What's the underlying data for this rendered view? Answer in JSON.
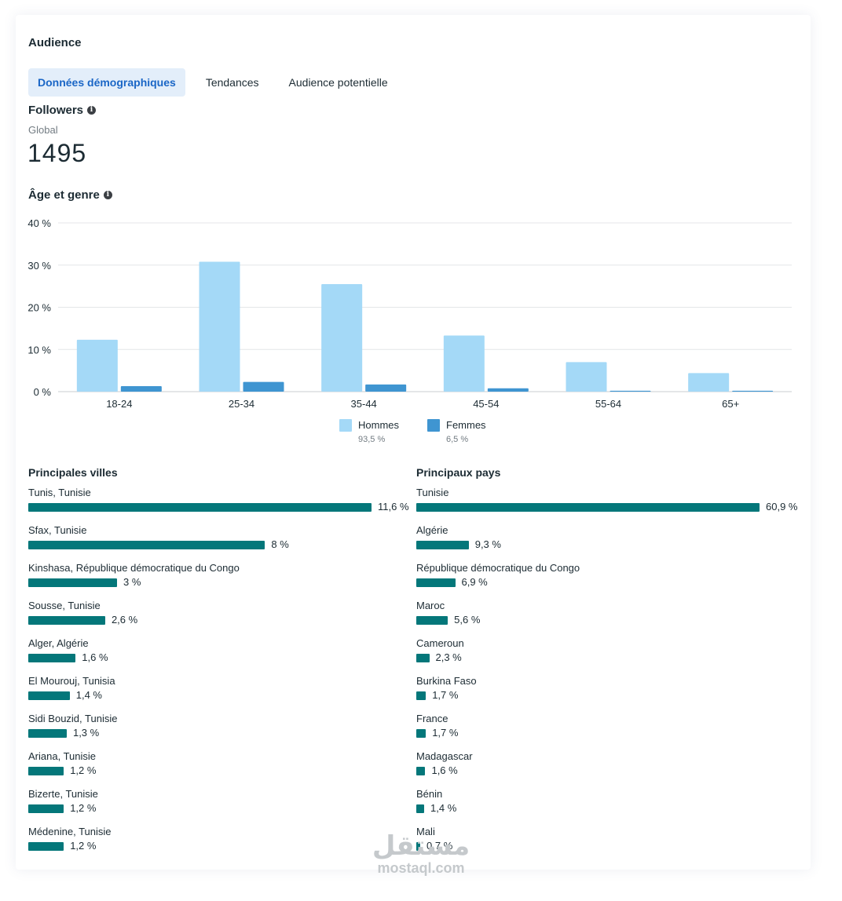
{
  "card": {
    "title": "Audience"
  },
  "tabs": [
    {
      "label": "Données démographiques",
      "active": true
    },
    {
      "label": "Tendances",
      "active": false
    },
    {
      "label": "Audience potentielle",
      "active": false
    }
  ],
  "followers": {
    "title": "Followers",
    "scope": "Global",
    "count": "1495"
  },
  "age_gender": {
    "title": "Âge et genre"
  },
  "chart_data": {
    "type": "bar",
    "categories": [
      "18-24",
      "25-34",
      "35-44",
      "45-54",
      "55-64",
      "65+"
    ],
    "series": [
      {
        "name": "Hommes",
        "share": "93,5 %",
        "color": "#a4d9f7",
        "values": [
          12.3,
          30.8,
          25.5,
          13.3,
          7.0,
          4.4
        ]
      },
      {
        "name": "Femmes",
        "share": "6,5 %",
        "color": "#3f95d1",
        "values": [
          1.3,
          2.3,
          1.7,
          0.8,
          0.2,
          0.2
        ]
      }
    ],
    "yticks": [
      "0 %",
      "10 %",
      "20 %",
      "30 %",
      "40 %"
    ],
    "ylim": [
      0,
      40
    ],
    "grid": true,
    "legend": "bottom-center",
    "title": "",
    "xlabel": "",
    "ylabel": ""
  },
  "top_cities": {
    "title": "Principales villes",
    "items": [
      {
        "label": "Tunis, Tunisie",
        "value": 11.6,
        "display": "11,6 %"
      },
      {
        "label": "Sfax, Tunisie",
        "value": 8,
        "display": "8 %"
      },
      {
        "label": "Kinshasa, République démocratique du Congo",
        "value": 3,
        "display": "3 %"
      },
      {
        "label": "Sousse, Tunisie",
        "value": 2.6,
        "display": "2,6 %"
      },
      {
        "label": "Alger, Algérie",
        "value": 1.6,
        "display": "1,6 %"
      },
      {
        "label": "El Mourouj, Tunisia",
        "value": 1.4,
        "display": "1,4 %"
      },
      {
        "label": "Sidi Bouzid, Tunisie",
        "value": 1.3,
        "display": "1,3 %"
      },
      {
        "label": "Ariana, Tunisie",
        "value": 1.2,
        "display": "1,2 %"
      },
      {
        "label": "Bizerte, Tunisie",
        "value": 1.2,
        "display": "1,2 %"
      },
      {
        "label": "Médenine, Tunisie",
        "value": 1.2,
        "display": "1,2 %"
      }
    ]
  },
  "top_countries": {
    "title": "Principaux pays",
    "items": [
      {
        "label": "Tunisie",
        "value": 60.9,
        "display": "60,9 %"
      },
      {
        "label": "Algérie",
        "value": 9.3,
        "display": "9,3 %"
      },
      {
        "label": "République démocratique du Congo",
        "value": 6.9,
        "display": "6,9 %"
      },
      {
        "label": "Maroc",
        "value": 5.6,
        "display": "5,6 %"
      },
      {
        "label": "Cameroun",
        "value": 2.3,
        "display": "2,3 %"
      },
      {
        "label": "Burkina Faso",
        "value": 1.7,
        "display": "1,7 %"
      },
      {
        "label": "France",
        "value": 1.7,
        "display": "1,7 %"
      },
      {
        "label": "Madagascar",
        "value": 1.6,
        "display": "1,6 %"
      },
      {
        "label": "Bénin",
        "value": 1.4,
        "display": "1,4 %"
      },
      {
        "label": "Mali",
        "value": 0.7,
        "display": "0,7 %"
      }
    ]
  },
  "watermark": {
    "arabic": "مستقل",
    "latin": "mostaql.com"
  },
  "colors": {
    "accent": "#1a66c6",
    "bar": "#04777a",
    "tab_active_bg": "#e3eefa"
  }
}
